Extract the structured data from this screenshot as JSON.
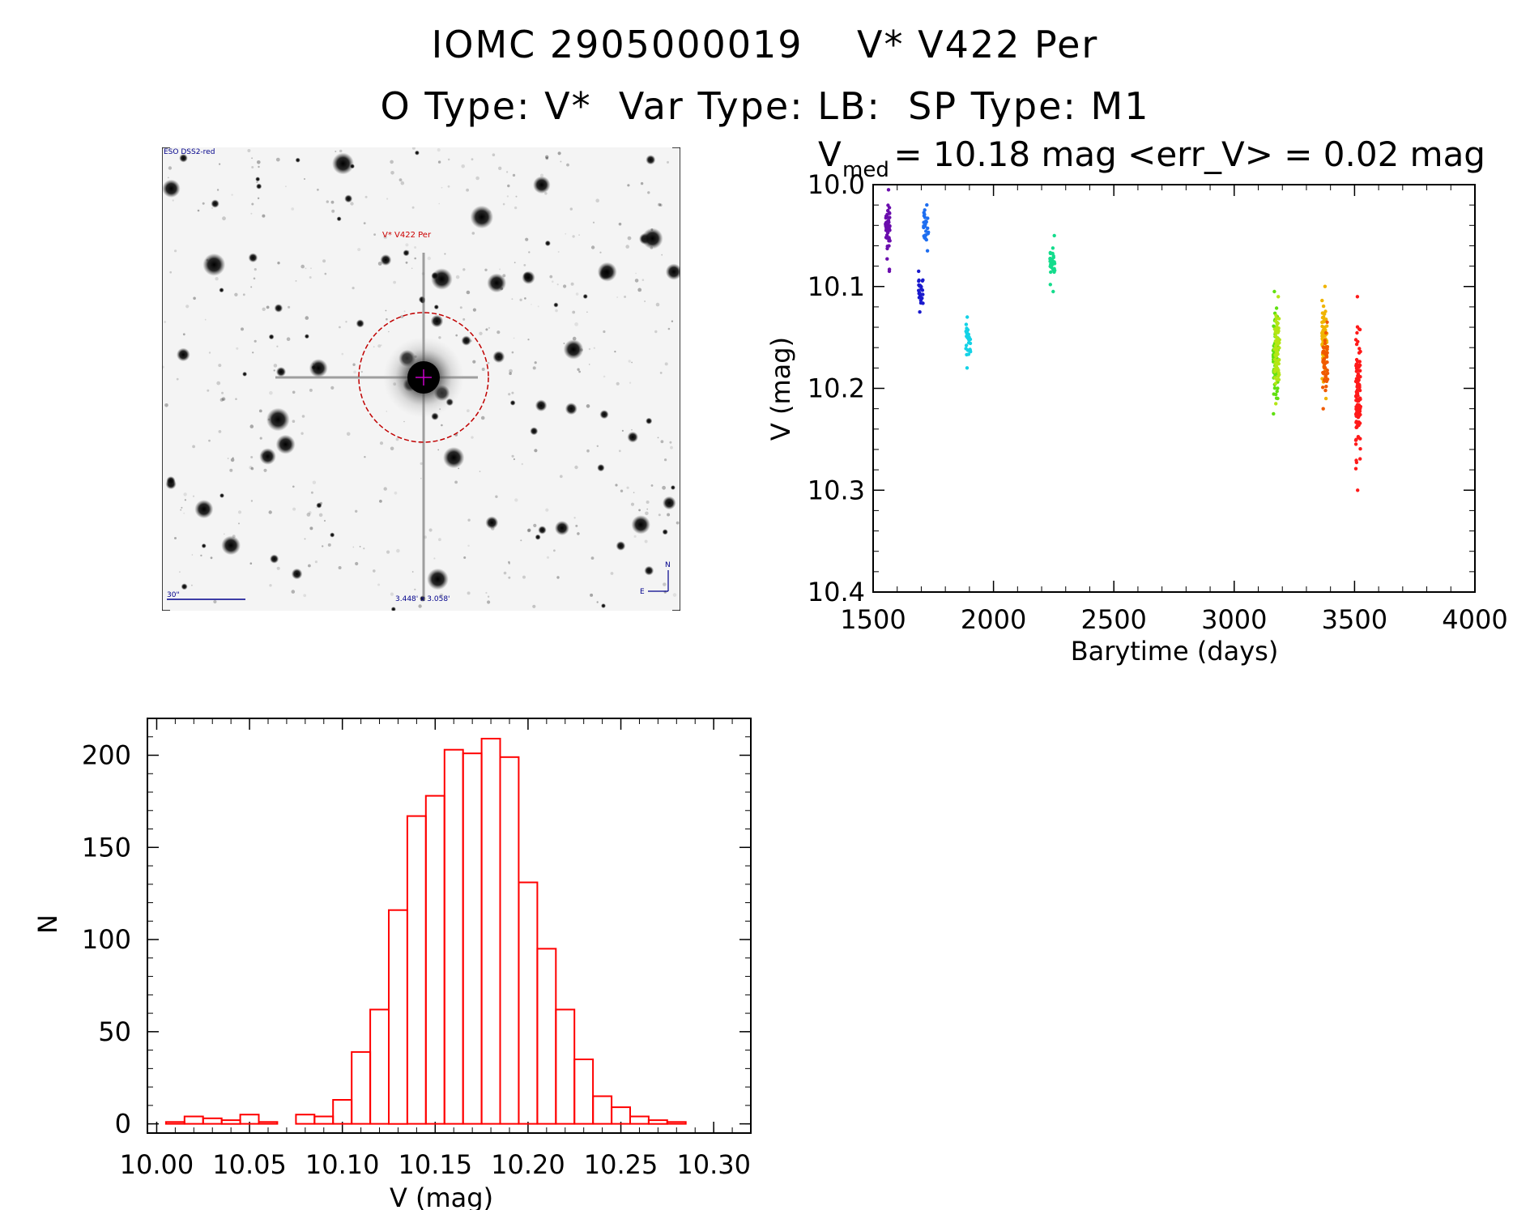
{
  "header": {
    "line1": "IOMC 2905000019    V* V422 Per",
    "line2": "O Type: V*  Var Type: LB:  SP Type: M1"
  },
  "sky_image": {
    "survey_label": "ESO DSS2-red",
    "object_label": "V* V422 Per",
    "scale_label": "30\"",
    "fov_label": "3.448' x 3.058'",
    "north_label": "N",
    "east_label": "E",
    "label_color": "#00008b",
    "object_color": "#cc0000"
  },
  "chart_data": [
    {
      "type": "scatter",
      "title_prefix": "V",
      "title_subscript": "med",
      "title_rest": " = 10.18 mag <err_V> = 0.02 mag",
      "xlabel": "Barytime (days)",
      "ylabel": "V (mag)",
      "xlim": [
        1500,
        4000
      ],
      "ylim": [
        10.4,
        10.0
      ],
      "xticks": [
        "1500",
        "2000",
        "2500",
        "3000",
        "3500",
        "4000"
      ],
      "yticks": [
        "10.0",
        "10.1",
        "10.2",
        "10.3",
        "10.4"
      ],
      "groups": [
        {
          "x": 1560,
          "ymin": 10.005,
          "ymax": 10.085,
          "color": "#6a0dad"
        },
        {
          "x": 1697,
          "ymin": 10.085,
          "ymax": 10.125,
          "color": "#1a1acd"
        },
        {
          "x": 1720,
          "ymin": 10.02,
          "ymax": 10.065,
          "color": "#1e6ef0"
        },
        {
          "x": 1895,
          "ymin": 10.13,
          "ymax": 10.18,
          "color": "#14d2e6"
        },
        {
          "x": 2245,
          "ymin": 10.05,
          "ymax": 10.105,
          "color": "#14dc8c"
        },
        {
          "x": 3172,
          "ymin": 10.105,
          "ymax": 10.225,
          "color": "#60e010"
        },
        {
          "x": 3178,
          "ymin": 10.11,
          "ymax": 10.215,
          "color": "#b4e614"
        },
        {
          "x": 3375,
          "ymin": 10.1,
          "ymax": 10.21,
          "color": "#f0b400"
        },
        {
          "x": 3378,
          "ymin": 10.135,
          "ymax": 10.22,
          "color": "#f05a00"
        },
        {
          "x": 3515,
          "ymin": 10.11,
          "ymax": 10.3,
          "color": "#ff1a1a"
        }
      ]
    },
    {
      "type": "bar",
      "title": "",
      "xlabel": "V (mag)",
      "ylabel": "N",
      "xlim": [
        9.995,
        10.32
      ],
      "ylim": [
        -5,
        220
      ],
      "xticks": [
        "10.00",
        "10.05",
        "10.10",
        "10.15",
        "10.20",
        "10.25",
        "10.30"
      ],
      "yticks": [
        "0",
        "50",
        "100",
        "150",
        "200"
      ],
      "bin_start": 10.005,
      "bin_width": 0.01,
      "counts": [
        1,
        4,
        3,
        2,
        5,
        1,
        0,
        5,
        4,
        13,
        39,
        62,
        116,
        167,
        178,
        203,
        201,
        209,
        199,
        131,
        95,
        62,
        35,
        15,
        9,
        4,
        2,
        1
      ],
      "bar_color": "#ff0000"
    }
  ]
}
